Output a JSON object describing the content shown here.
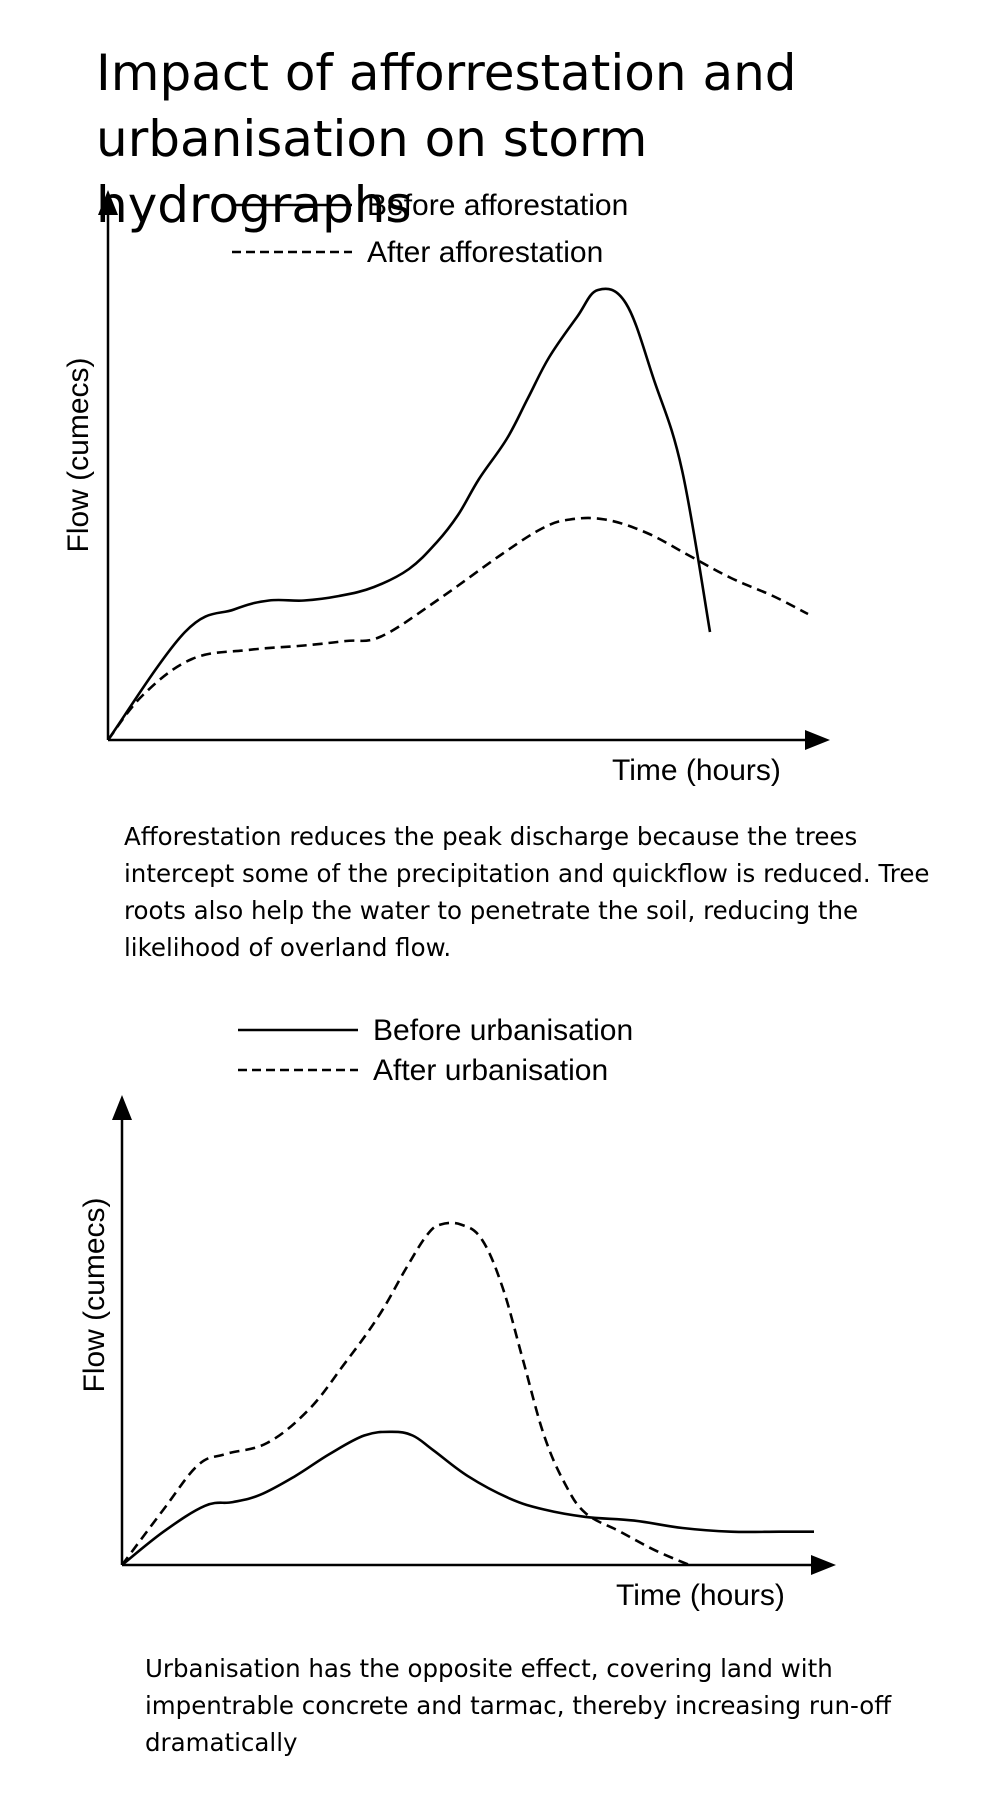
{
  "title": {
    "line1": "Impact of afforrestation and",
    "line2": "urbanisation on storm hydrographs"
  },
  "captions": {
    "afforestation": "Afforestation reduces the peak discharge because the trees intercept some of the precipitation and quickflow is reduced. Tree roots also help the water to penetrate the soil, reducing the likelihood of overland flow.",
    "urbanisation": "Urbanisation has the opposite effect, covering land with impentrable concrete and tarmac, thereby increasing run-off dramatically"
  },
  "chart_data": [
    {
      "type": "line",
      "title": "",
      "xlabel": "Time (hours)",
      "ylabel": "Flow (cumecs)",
      "xlim": [
        0,
        100
      ],
      "ylim": [
        0,
        100
      ],
      "grid": false,
      "legend_position": "top",
      "series": [
        {
          "name": "Before afforestation",
          "style": "solid",
          "color": "#000000",
          "x": [
            0,
            11,
            18,
            23,
            28,
            33,
            38,
            43,
            47,
            50,
            53,
            57,
            60,
            63,
            67,
            70,
            74,
            78,
            82,
            86
          ],
          "y": [
            0,
            24,
            29,
            31,
            31,
            32,
            34,
            38,
            44,
            50,
            58,
            67,
            76,
            85,
            94,
            100,
            97,
            80,
            60,
            24
          ]
        },
        {
          "name": "After afforestation",
          "style": "dashed",
          "color": "#000000",
          "x": [
            0,
            5,
            12,
            20,
            28,
            34,
            39,
            47,
            56,
            62,
            66,
            71,
            77,
            83,
            89,
            95,
            100
          ],
          "y": [
            0,
            10,
            18,
            20,
            21,
            22,
            23,
            31,
            41,
            47,
            49,
            49,
            46,
            41,
            36,
            32,
            28
          ]
        }
      ]
    },
    {
      "type": "line",
      "title": "",
      "xlabel": "Time (hours)",
      "ylabel": "Flow (cumecs)",
      "xlim": [
        0,
        100
      ],
      "ylim": [
        0,
        100
      ],
      "grid": false,
      "legend_position": "top",
      "series": [
        {
          "name": "Before urbanisation",
          "style": "solid",
          "color": "#000000",
          "x": [
            0,
            6,
            12,
            16,
            20,
            25,
            30,
            35,
            39,
            42,
            45,
            50,
            56,
            61,
            67,
            74,
            81,
            88,
            95,
            100
          ],
          "y": [
            0,
            9,
            16,
            17,
            19,
            24,
            30,
            35,
            36,
            35,
            31,
            24,
            18,
            15,
            13,
            12,
            10,
            9,
            9,
            9
          ]
        },
        {
          "name": "After urbanisation",
          "style": "dashed",
          "color": "#000000",
          "x": [
            0,
            6,
            11,
            15,
            21,
            27,
            32,
            37,
            41,
            44,
            46,
            49,
            52,
            55,
            58,
            61,
            64,
            67,
            72,
            77,
            82
          ],
          "y": [
            0,
            15,
            27,
            30,
            33,
            42,
            54,
            67,
            80,
            89,
            92,
            92,
            88,
            75,
            55,
            35,
            22,
            14,
            9,
            4,
            0
          ]
        }
      ]
    }
  ]
}
